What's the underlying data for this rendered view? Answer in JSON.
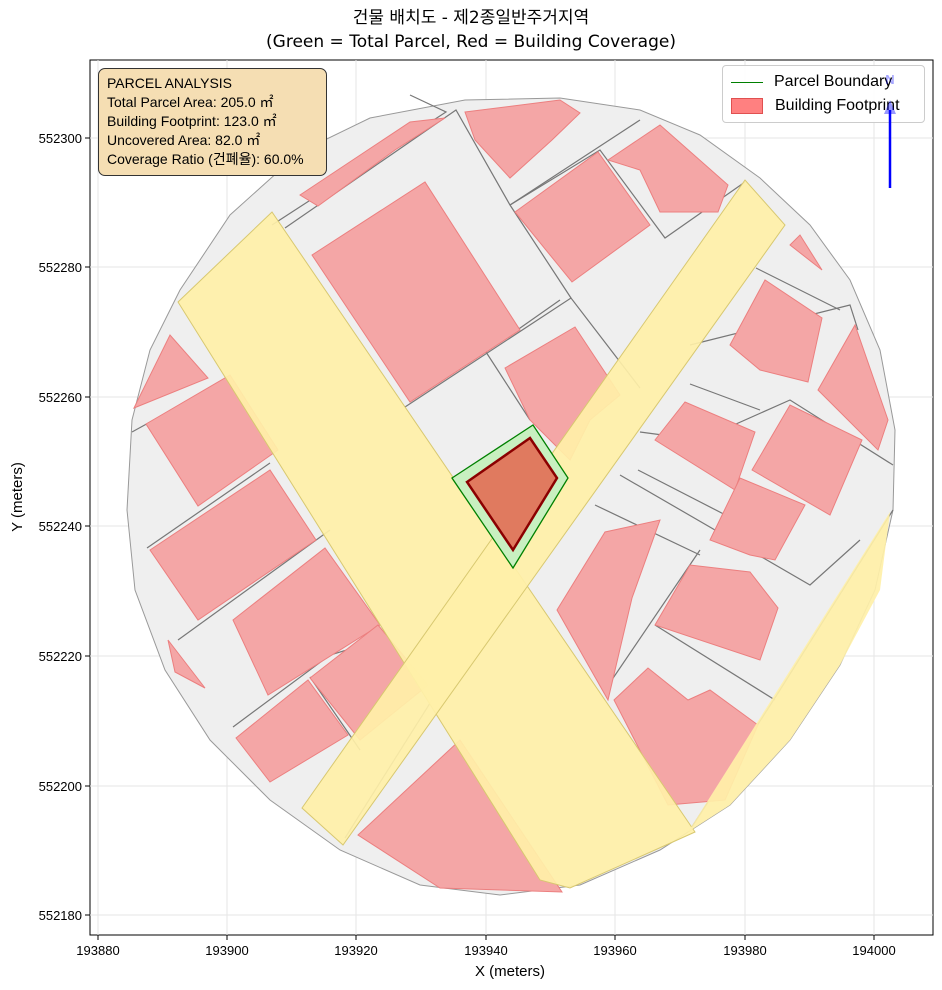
{
  "title": {
    "line1": "건물 배치도 - 제2종일반주거지역",
    "line2": "(Green = Total Parcel, Red = Building Coverage)"
  },
  "axes": {
    "x_label": "X (meters)",
    "y_label": "Y (meters)",
    "x_ticks": [
      "193880",
      "193900",
      "193920",
      "193940",
      "193960",
      "193980",
      "194000"
    ],
    "y_ticks": [
      "552180",
      "552200",
      "552220",
      "552240",
      "552260",
      "552280",
      "552300"
    ]
  },
  "info_box": {
    "line1": "PARCEL ANALYSIS",
    "line2": "Total Parcel Area: 205.0 ㎡",
    "line3": "Building Footprint: 123.0 ㎡",
    "line4": "Uncovered Area: 82.0 ㎡",
    "line5": "Coverage Ratio (건폐율): 60.0%"
  },
  "legend": {
    "parcel_boundary": "Parcel Boundary",
    "building_footprint": "Building Footprint"
  },
  "north_arrow": {
    "label": "N"
  },
  "colors": {
    "parcel_fill": "#c8f0c0",
    "parcel_edge": "#008000",
    "building_fill": "#f4a6a6",
    "target_building_fill": "#e07a5f",
    "target_building_edge": "#8b0000",
    "road_fill": "#fff0a8",
    "lot_fill": "#efefef",
    "info_box_bg": "#f5deb3",
    "north_arrow": "#0000ff"
  }
}
